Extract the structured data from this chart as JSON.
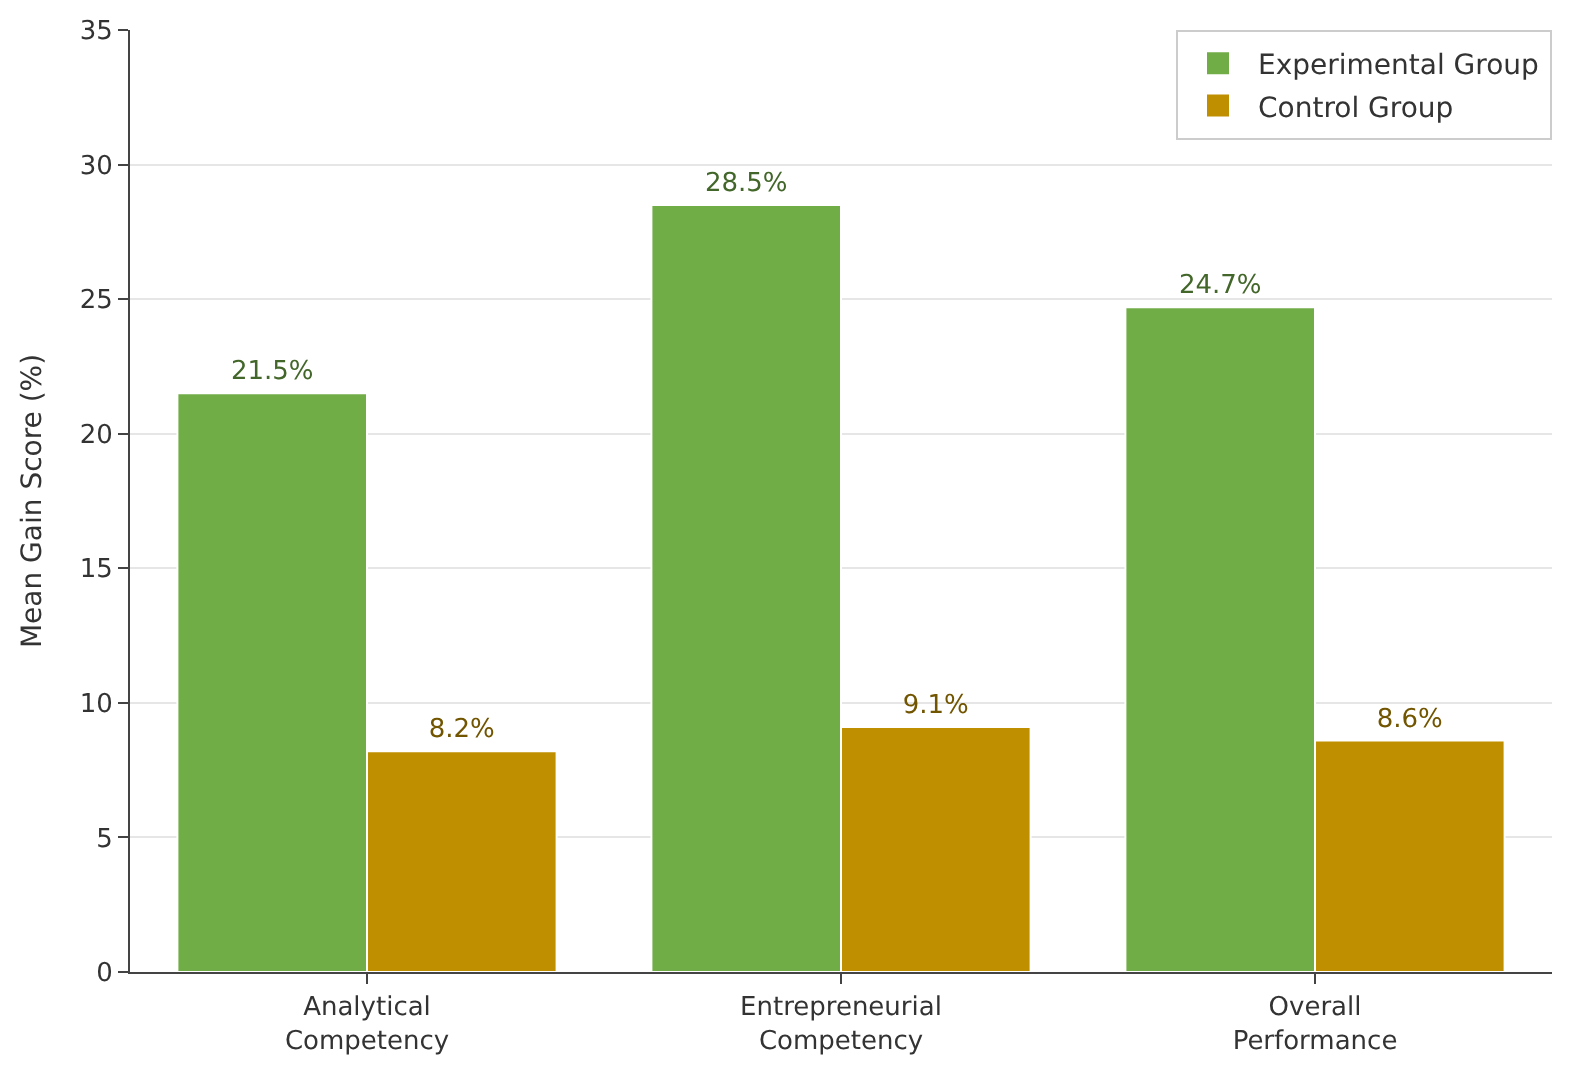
{
  "chart_data": {
    "type": "bar",
    "ylabel": "Mean Gain Score (%)",
    "categories": [
      "Analytical\nCompetency",
      "Entrepreneurial\nCompetency",
      "Overall\nPerformance"
    ],
    "series": [
      {
        "name": "Experimental Group",
        "color": "#70ad47",
        "values": [
          21.5,
          28.5,
          24.7
        ],
        "value_labels": [
          "21.5%",
          "28.5%",
          "24.7%"
        ]
      },
      {
        "name": "Control Group",
        "color": "#bf8f00",
        "values": [
          8.2,
          9.1,
          8.6
        ],
        "value_labels": [
          "8.2%",
          "9.1%",
          "8.6%"
        ]
      }
    ],
    "ylim": [
      0,
      35
    ],
    "yticks": [
      0,
      5,
      10,
      15,
      20,
      25,
      30,
      35
    ],
    "grid": "y",
    "legend": "top right"
  }
}
